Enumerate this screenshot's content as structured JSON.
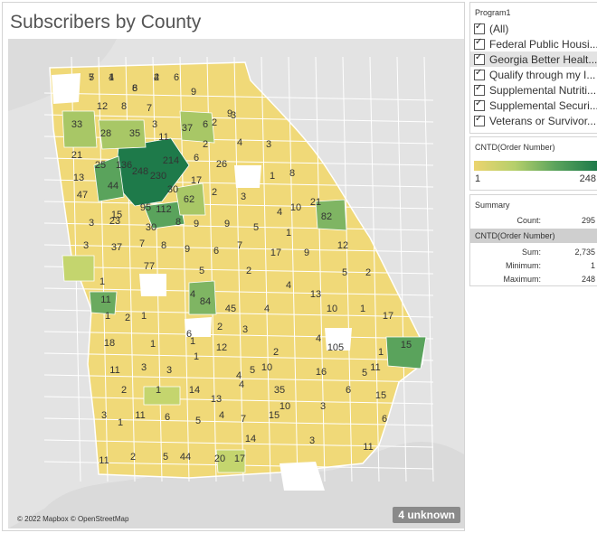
{
  "title": "Subscribers by County",
  "map": {
    "attribution": "© 2022 Mapbox © OpenStreetMap",
    "unknown_badge": "4 unknown",
    "color_low": "#ecd46f",
    "color_high": "#1e7a4a",
    "county_values": [
      "7",
      "1",
      "6",
      "4",
      "6",
      "12",
      "8",
      "7",
      "3",
      "9",
      "6",
      "9",
      "33",
      "28",
      "35",
      "37",
      "2",
      "3",
      "11",
      "21",
      "25",
      "136",
      "214",
      "2",
      "4",
      "3",
      "6",
      "26",
      "248",
      "230",
      "1",
      "8",
      "13",
      "47",
      "44",
      "30",
      "17",
      "21",
      "62",
      "2",
      "3",
      "4",
      "10",
      "15",
      "95",
      "112",
      "82",
      "23",
      "3",
      "30",
      "8",
      "9",
      "9",
      "5",
      "1",
      "3",
      "37",
      "7",
      "8",
      "9",
      "6",
      "7",
      "17",
      "9",
      "12",
      "5",
      "2",
      "5",
      "77",
      "2",
      "4",
      "1",
      "4",
      "11",
      "84",
      "45",
      "4",
      "13",
      "10",
      "1",
      "2",
      "1",
      "2",
      "3",
      "6",
      "1",
      "17",
      "18",
      "1",
      "1",
      "12",
      "2",
      "4",
      "15",
      "105",
      "1",
      "1",
      "10",
      "11",
      "3",
      "3",
      "5",
      "5",
      "11",
      "4",
      "16",
      "2",
      "1",
      "14",
      "35",
      "6",
      "15",
      "13",
      "4",
      "10",
      "3",
      "1",
      "11",
      "6",
      "5",
      "4",
      "7",
      "15",
      "3",
      "6",
      "3",
      "11",
      "17",
      "20",
      "14",
      "44",
      "5",
      "2",
      "11",
      "5",
      "4",
      "8",
      "2"
    ]
  },
  "filter": {
    "title": "Program1",
    "items": [
      {
        "label": "(All)",
        "checked": true,
        "selected": false
      },
      {
        "label": "Federal Public Housi...",
        "checked": true,
        "selected": false
      },
      {
        "label": "Georgia Better Healt...",
        "checked": true,
        "selected": true
      },
      {
        "label": "Qualify through my I...",
        "checked": true,
        "selected": false
      },
      {
        "label": "Supplemental Nutriti...",
        "checked": true,
        "selected": false
      },
      {
        "label": "Supplemental Securi...",
        "checked": true,
        "selected": false
      },
      {
        "label": "Veterans or Survivor...",
        "checked": true,
        "selected": false
      }
    ]
  },
  "legend": {
    "title": "CNTD(Order Number)",
    "min": "1",
    "max": "248"
  },
  "summary": {
    "title": "Summary",
    "count_label": "Count:",
    "count_value": "295",
    "band": "CNTD(Order Number)",
    "sum_label": "Sum:",
    "sum_value": "2,735",
    "min_label": "Minimum:",
    "min_value": "1",
    "max_label": "Maximum:",
    "max_value": "248"
  }
}
